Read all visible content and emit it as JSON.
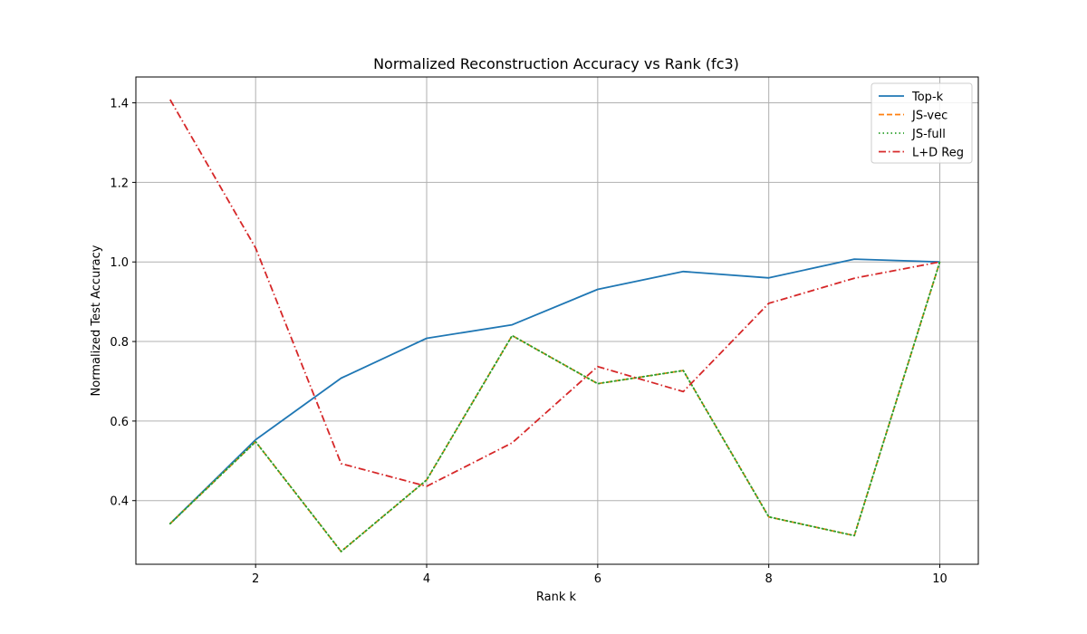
{
  "chart_data": {
    "type": "line",
    "title": "Normalized Reconstruction Accuracy vs Rank (fc3)",
    "xlabel": "Rank k",
    "ylabel": "Normalized Test Accuracy",
    "xlim": [
      0.6,
      10.45
    ],
    "ylim": [
      0.24,
      1.465
    ],
    "x": [
      1,
      2,
      3,
      4,
      5,
      6,
      7,
      8,
      9,
      10
    ],
    "xticks": [
      2,
      4,
      6,
      8,
      10
    ],
    "yticks": [
      0.4,
      0.6,
      0.8,
      1.0,
      1.2,
      1.4
    ],
    "ytick_labels": [
      "0.4",
      "0.6",
      "0.8",
      "1.0",
      "1.2",
      "1.4"
    ],
    "grid": true,
    "legend_position": "top-right",
    "series": [
      {
        "name": "Top-k",
        "color": "#1f77b4",
        "style": "solid",
        "values": [
          0.342,
          0.553,
          0.708,
          0.808,
          0.842,
          0.931,
          0.976,
          0.96,
          1.007,
          1.0
        ]
      },
      {
        "name": "JS-vec",
        "color": "#ff7f0e",
        "style": "dashed",
        "values": [
          0.342,
          0.548,
          0.272,
          0.452,
          0.815,
          0.694,
          0.727,
          0.359,
          0.312,
          1.0
        ]
      },
      {
        "name": "JS-full",
        "color": "#2ca02c",
        "style": "dotted",
        "values": [
          0.342,
          0.548,
          0.272,
          0.452,
          0.815,
          0.694,
          0.727,
          0.359,
          0.312,
          1.0
        ]
      },
      {
        "name": "L+D Reg",
        "color": "#d62728",
        "style": "dashdot",
        "values": [
          1.408,
          1.035,
          0.493,
          0.436,
          0.545,
          0.737,
          0.674,
          0.896,
          0.959,
          1.0
        ]
      }
    ]
  }
}
